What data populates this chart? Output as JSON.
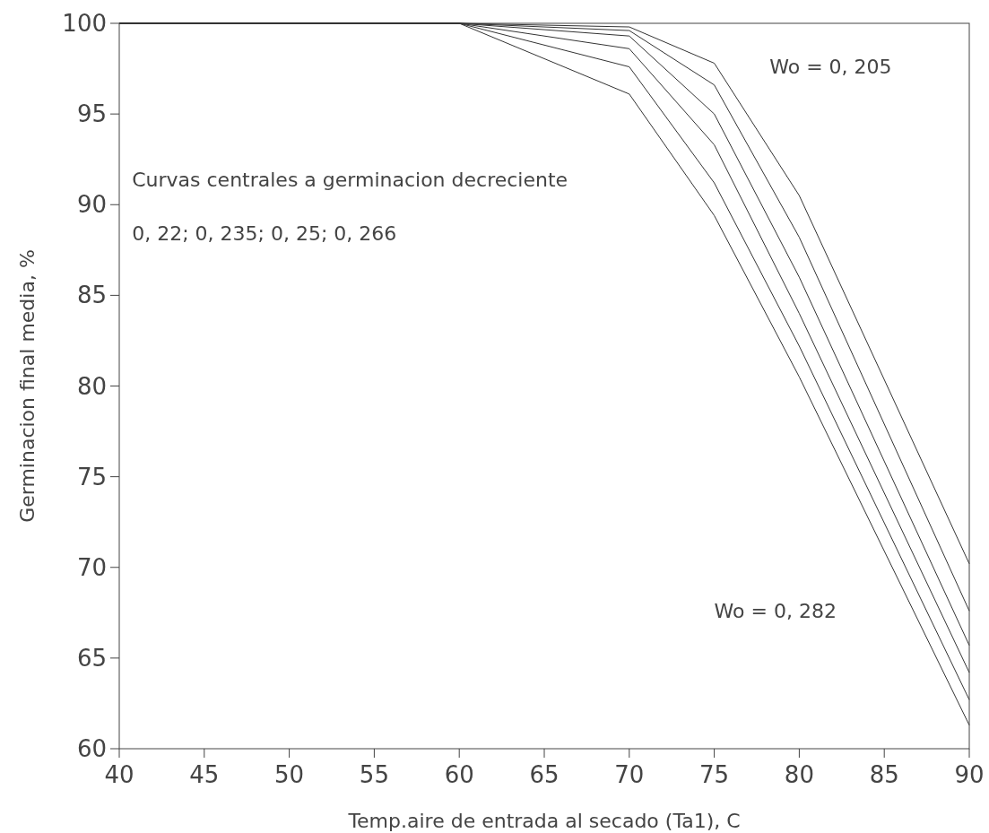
{
  "chart_data": {
    "type": "line",
    "xlabel": "Temp.aire de entrada al secado (Ta1),  C",
    "ylabel": "Germinacion final media,  %",
    "x": [
      40,
      60,
      70,
      75,
      80,
      90
    ],
    "series": [
      {
        "color": "#333333",
        "values": [
          100,
          100,
          99.8,
          97.8,
          90.5,
          70.2
        ]
      },
      {
        "color": "#333333",
        "values": [
          100,
          100,
          99.6,
          96.6,
          88.2,
          67.6
        ]
      },
      {
        "color": "#333333",
        "values": [
          100,
          100,
          99.3,
          95.0,
          86.0,
          65.7
        ]
      },
      {
        "color": "#333333",
        "values": [
          100,
          100,
          98.6,
          93.3,
          84.0,
          64.2
        ]
      },
      {
        "color": "#333333",
        "values": [
          100,
          100,
          97.6,
          91.2,
          82.2,
          62.7
        ]
      },
      {
        "color": "#333333",
        "values": [
          100,
          100,
          96.1,
          89.4,
          80.5,
          61.3
        ]
      }
    ],
    "xlim": [
      40,
      90
    ],
    "xticks": [
      40,
      45,
      50,
      55,
      60,
      65,
      70,
      75,
      80,
      85,
      90
    ],
    "ylim": [
      60,
      100
    ],
    "yticks": [
      60,
      65,
      70,
      75,
      80,
      85,
      90,
      95,
      100
    ],
    "grid": false,
    "marker": "none",
    "line_style": "solid",
    "annotations": [
      "Curvas centrales a germinacion decreciente",
      "0, 22; 0, 235; 0, 25; 0, 266",
      "Wo = 0, 205",
      "Wo = 0, 282"
    ]
  }
}
